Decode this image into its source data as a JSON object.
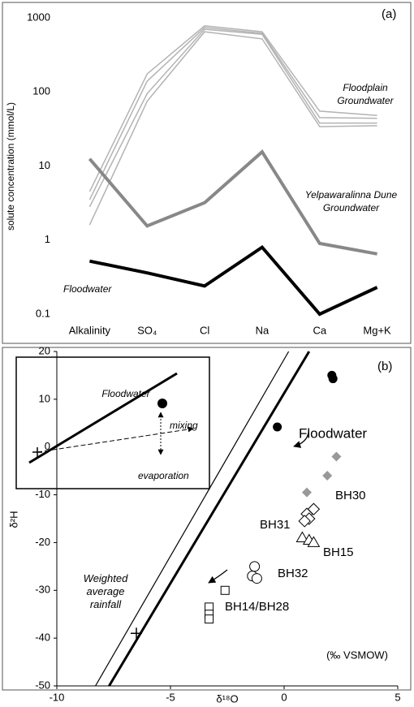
{
  "chart_data": [
    {
      "type": "line",
      "label": "(a)",
      "y_label": "solute concentration (mmol/L)",
      "log_scale": true,
      "categories": [
        "Alkalinity",
        "SO₄",
        "Cl",
        "Na",
        "Ca",
        "Mg+K"
      ],
      "ylim": [
        0.1,
        1000
      ],
      "yticks": [
        0.1,
        1,
        10,
        100,
        1000
      ],
      "annotations": [
        "Floodplain Groundwater",
        "Yelpawaralinna Dune Groundwater",
        "Floodwater"
      ],
      "series": [
        {
          "color": "#b3b3b3",
          "linewidth": 1.5,
          "values": [
            4.5,
            175,
            780,
            650,
            55,
            48
          ]
        },
        {
          "color": "#b3b3b3",
          "linewidth": 1.5,
          "values": [
            3.5,
            140,
            740,
            620,
            45,
            44
          ]
        },
        {
          "color": "#b3b3b3",
          "linewidth": 1.5,
          "values": [
            2.8,
            95,
            700,
            600,
            38,
            38
          ]
        },
        {
          "color": "#b3b3b3",
          "linewidth": 1.5,
          "values": [
            1.6,
            75,
            650,
            520,
            34,
            35
          ]
        },
        {
          "color": "#888888",
          "linewidth": 4,
          "values": [
            12.5,
            1.55,
            3.2,
            15.5,
            0.9,
            0.65
          ]
        },
        {
          "color": "#000000",
          "linewidth": 4,
          "values": [
            0.52,
            0.36,
            0.24,
            0.8,
            0.1,
            0.23
          ]
        }
      ]
    },
    {
      "type": "scatter",
      "label": "(b)",
      "x_label": "δ¹⁸O",
      "y_label": "δ²H",
      "units": "(‰ VSMOW)",
      "xlim": [
        -10,
        5
      ],
      "xticks": [
        -10,
        -5,
        0,
        5
      ],
      "ylim": [
        -50,
        20
      ],
      "yticks": [
        -50,
        -40,
        -30,
        -20,
        -10,
        0,
        10,
        20
      ],
      "inset_labels": [
        "Floodwater",
        "mixing",
        "evaporation"
      ],
      "lines": [
        {
          "color": "#000000",
          "width": 1.2,
          "x": [
            -8.3,
            0.2
          ],
          "y": [
            -50,
            20
          ]
        },
        {
          "color": "#000000",
          "width": 3,
          "x": [
            -7.7,
            1.1
          ],
          "y": [
            -50,
            20
          ]
        }
      ],
      "series": [
        {
          "name": "Floodwater",
          "marker": "circle-filled",
          "color": "#000000",
          "x": [
            2.1,
            2.15,
            -0.3
          ],
          "values": [
            15,
            14.3,
            4.2
          ]
        },
        {
          "name": "BH30",
          "marker": "diamond-filled",
          "color": "#999999",
          "x": [
            2.3,
            1.0,
            1.9
          ],
          "values": [
            -2,
            -9.5,
            -6
          ]
        },
        {
          "name": "BH31",
          "marker": "diamond",
          "color": "#000000",
          "x": [
            1.3,
            1.0,
            1.1,
            0.9
          ],
          "values": [
            -13,
            -14,
            -15,
            -15.5
          ]
        },
        {
          "name": "BH15",
          "marker": "triangle",
          "color": "#000000",
          "x": [
            0.8,
            1.1,
            1.3
          ],
          "values": [
            -19,
            -19.5,
            -20
          ]
        },
        {
          "name": "BH32",
          "marker": "circle",
          "color": "#000000",
          "x": [
            -1.3,
            -1.4,
            -1.2
          ],
          "values": [
            -25,
            -27,
            -27.5
          ]
        },
        {
          "name": "BH14/BH28",
          "marker": "square",
          "color": "#000000",
          "x": [
            -2.6,
            -3.3,
            -3.3,
            -3.3
          ],
          "values": [
            -30,
            -33.5,
            -35,
            -36
          ]
        },
        {
          "name": "Weighted average rainfall",
          "marker": "plus",
          "color": "#000000",
          "x": [
            -6.5
          ],
          "values": [
            -39
          ]
        }
      ]
    }
  ]
}
